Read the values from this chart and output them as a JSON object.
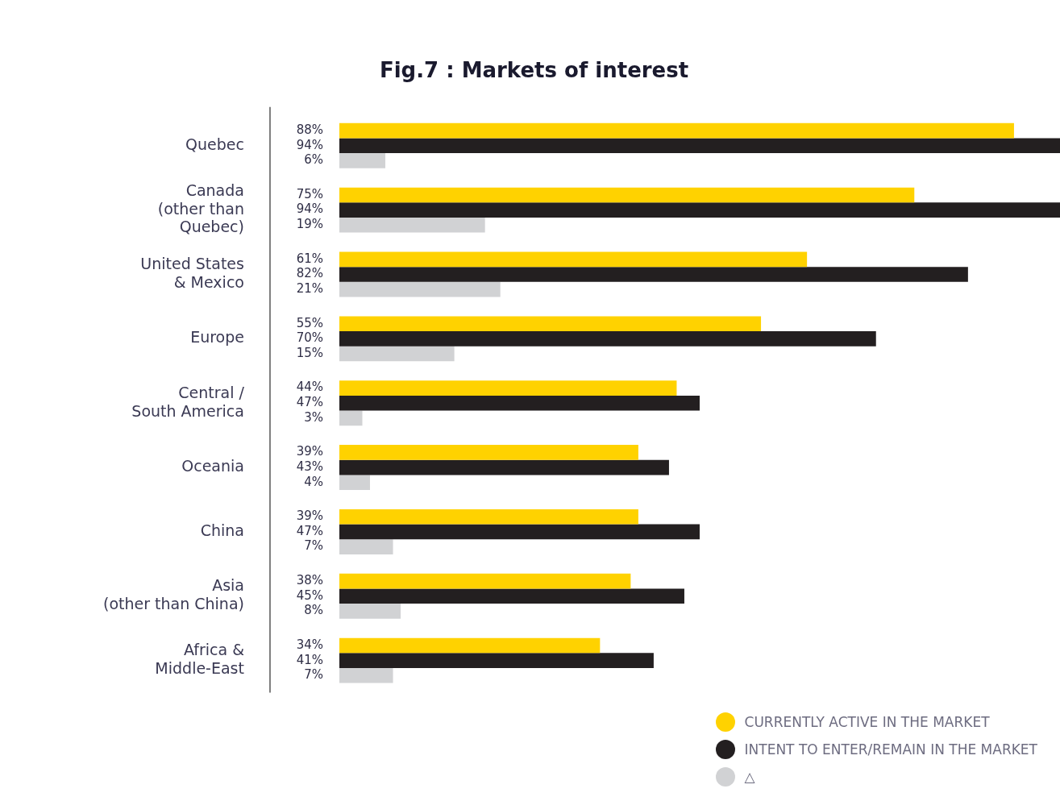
{
  "chart_data": {
    "type": "bar",
    "orientation": "horizontal",
    "title": "Fig.7 : Markets of interest",
    "categories": [
      "Quebec",
      "Canada\n(other than\nQuebec)",
      "United States\n& Mexico",
      "Europe",
      "Central /\nSouth America",
      "Oceania",
      "China",
      "Asia\n(other than China)",
      "Africa &\nMiddle-East"
    ],
    "series": [
      {
        "name": "CURRENTLY ACTIVE IN THE MARKET",
        "color": "#ffd200",
        "values": [
          88,
          75,
          61,
          55,
          44,
          39,
          39,
          38,
          34
        ],
        "value_labels": [
          "88%",
          "75%",
          "61%",
          "55%",
          "44%",
          "39%",
          "39%",
          "38%",
          "34%"
        ]
      },
      {
        "name": "INTENT TO ENTER/REMAIN IN THE MARKET",
        "color": "#231f20",
        "values": [
          94,
          94,
          82,
          70,
          47,
          43,
          47,
          45,
          41
        ],
        "value_labels": [
          "94%",
          "94%",
          "82%",
          "70%",
          "47%",
          "43%",
          "47%",
          "45%",
          "41%"
        ]
      },
      {
        "name": "△",
        "color": "#d1d2d4",
        "values": [
          6,
          19,
          21,
          15,
          3,
          4,
          7,
          8,
          7
        ],
        "value_labels": [
          "6%",
          "19%",
          "21%",
          "15%",
          "3%",
          "4%",
          "7%",
          "8%",
          "7%"
        ]
      }
    ],
    "xlim": [
      0,
      94
    ],
    "tick_labels": "y",
    "grid": false,
    "legend": "bottom right"
  }
}
